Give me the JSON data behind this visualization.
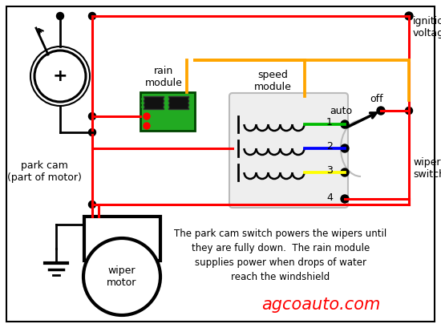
{
  "bg_color": "#ffffff",
  "red": "#ff0000",
  "green": "#00bb00",
  "blue": "#0000ff",
  "yellow": "#ffff00",
  "orange": "#ffa500",
  "black": "#000000",
  "gray": "#bbbbbb",
  "pcb_fill": "#22aa22",
  "pcb_border": "#004400",
  "pcb_chip": "#111111",
  "speed_box_fill": "#eeeeee",
  "title": "agcoauto.com",
  "description": "The park cam switch powers the wipers until\nthey are fully down.  The rain module\nsupplies power when drops of water\nreach the windshield",
  "label_rain": "rain\nmodule",
  "label_speed": "speed\nmodule",
  "label_auto": "auto",
  "label_off": "off",
  "label_ignition": "ignition\nvoltage",
  "label_wiper_switch": "wiper\nswitch",
  "label_park_cam": "park cam\n(part of motor)",
  "label_wiper_motor": "wiper\nmotor",
  "label_plus": "+",
  "switch_numbers": [
    "1",
    "2",
    "3",
    "4"
  ]
}
